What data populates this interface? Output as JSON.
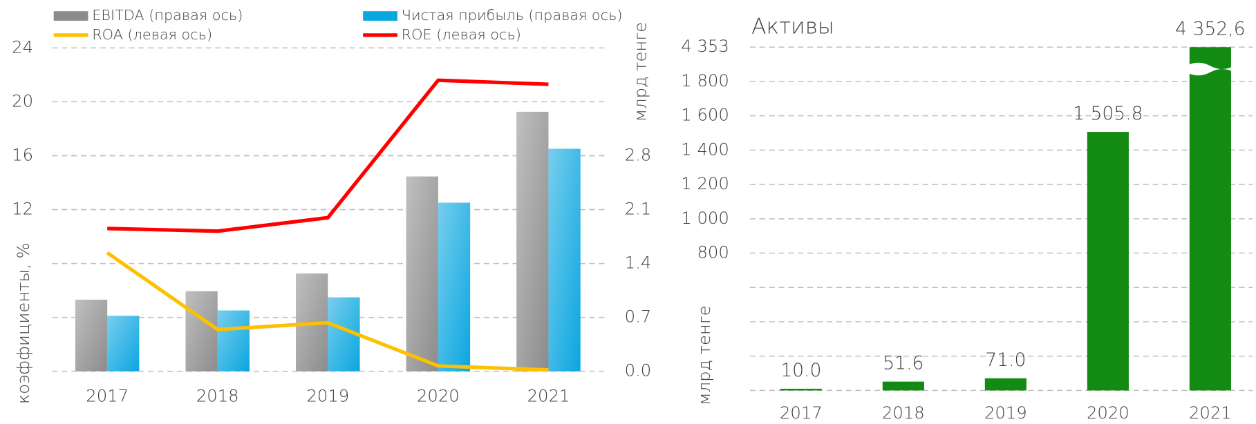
{
  "chart_data": [
    {
      "type": "combo",
      "categories": [
        "2017",
        "2018",
        "2019",
        "2020",
        "2021"
      ],
      "ylabel": "коэффициенты, %",
      "y2label": "млрд тенге",
      "ylim": [
        0,
        24
      ],
      "yticks": [
        12,
        16,
        20,
        24
      ],
      "y2lim": [
        0,
        4.2
      ],
      "y2ticks": [
        {
          "value": 0,
          "label": "0.0"
        },
        0.7,
        1.4,
        2.1,
        2.8
      ],
      "grid": true,
      "series": [
        {
          "name": "EBITDA (правая ось)",
          "type": "bar",
          "axis": "y2",
          "color": "#8c8c8c",
          "values": [
            0.93,
            1.04,
            1.27,
            2.53,
            3.37
          ]
        },
        {
          "name": "Чистая прибыль (правая ось)",
          "type": "bar",
          "axis": "y2",
          "color": "#0aa6e0",
          "values": [
            0.72,
            0.79,
            0.96,
            2.19,
            2.89
          ]
        },
        {
          "name": "ROA (левая ось)",
          "type": "line",
          "color": "#ffc000",
          "values": [
            8.8,
            3.1,
            3.6,
            0.4,
            0.1
          ]
        },
        {
          "name": "ROE (левая ось)",
          "type": "line",
          "color": "#ff0000",
          "values": [
            10.6,
            10.4,
            11.4,
            21.6,
            21.3
          ]
        }
      ]
    },
    {
      "type": "bar",
      "title": "Активы",
      "ylabel": "млрд тенге",
      "categories": [
        "2017",
        "2018",
        "2019",
        "2020",
        "2021"
      ],
      "values": [
        10.0,
        51.6,
        71.0,
        1505.8,
        4352.6
      ],
      "value_labels": [
        "10.0",
        "51.6",
        "71.0",
        "1 505.8",
        "4 352,6"
      ],
      "color": "#138a12",
      "ylim": [
        0,
        4353
      ],
      "yticks": [
        800,
        {
          "value": 1000,
          "label": "1 000"
        },
        {
          "value": 1200,
          "label": "1 200"
        },
        {
          "value": 1400,
          "label": "1 400"
        },
        {
          "value": 1600,
          "label": "1 600"
        },
        {
          "value": 1800,
          "label": "1 800"
        },
        {
          "value": 4353,
          "label": "4 353"
        }
      ],
      "axis_break": true,
      "grid": true
    }
  ]
}
